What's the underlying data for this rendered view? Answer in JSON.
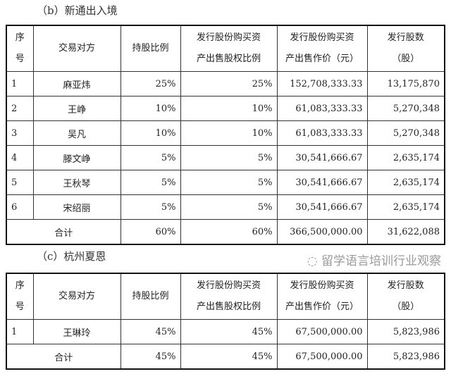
{
  "section_b": {
    "title": "（b）新通出入境",
    "headers": [
      "序\n号",
      "交易对方",
      "持股比例",
      "发行股份购买资\n产出售股权比例",
      "发行股份购买资\n产出售作价（元）",
      "发行股数\n（股）"
    ],
    "rows": [
      [
        "1",
        "麻亚炜",
        "25%",
        "25%",
        "152,708,333.33",
        "13,175,870"
      ],
      [
        "2",
        "王峥",
        "10%",
        "10%",
        "61,083,333.33",
        "5,270,348"
      ],
      [
        "3",
        "吴凡",
        "10%",
        "10%",
        "61,083,333.33",
        "5,270,348"
      ],
      [
        "4",
        "滕文峥",
        "5%",
        "5%",
        "30,541,666.67",
        "2,635,174"
      ],
      [
        "5",
        "王秋琴",
        "5%",
        "5%",
        "30,541,666.67",
        "2,635,174"
      ],
      [
        "6",
        "宋绍丽",
        "5%",
        "5%",
        "30,541,666.67",
        "2,635,174"
      ]
    ],
    "total": [
      "合计",
      "60%",
      "60%",
      "366,500,000.00",
      "31,622,088"
    ]
  },
  "section_c": {
    "title": "（c）杭州夏恩",
    "headers": [
      "序\n号",
      "交易对方",
      "持股比例",
      "发行股份购买资\n产出售股权比例",
      "发行股份购买资\n产出售作价（元）",
      "发行股数\n（股）"
    ],
    "rows": [
      [
        "1",
        "王琳玲",
        "45%",
        "45%",
        "67,500,000.00",
        "5,823,986"
      ]
    ],
    "total": [
      "合计",
      "45%",
      "45%",
      "67,500,000.00",
      "5,823,986"
    ]
  },
  "watermark": "留学语言培训行业观察"
}
